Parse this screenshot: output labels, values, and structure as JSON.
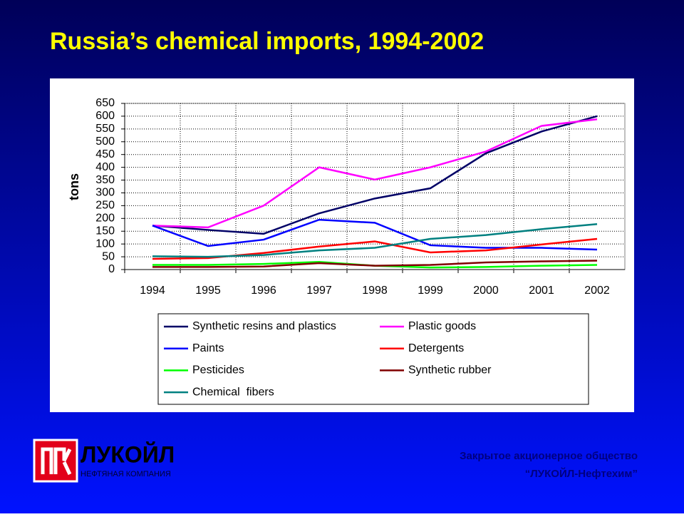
{
  "chart_data": {
    "type": "line",
    "title": "Russia’s chemical imports, 1994-2002",
    "y_label": "tons",
    "categories": [
      "1994",
      "1995",
      "1996",
      "1997",
      "1998",
      "1999",
      "2000",
      "2001",
      "2002"
    ],
    "ylim": [
      0,
      650
    ],
    "yticks": [
      0,
      50,
      100,
      150,
      200,
      250,
      300,
      350,
      400,
      450,
      500,
      550,
      600,
      650
    ],
    "grid": true,
    "legend": "bottom",
    "series": [
      {
        "name": "Synthetic resins and plastics",
        "color": "#000066",
        "values": [
          172,
          155,
          140,
          220,
          278,
          318,
          455,
          540,
          600
        ]
      },
      {
        "name": "Plastic goods",
        "color": "#ff00ff",
        "values": [
          172,
          165,
          250,
          400,
          352,
          400,
          462,
          562,
          588
        ]
      },
      {
        "name": "Paints",
        "color": "#0000ff",
        "values": [
          172,
          92,
          117,
          195,
          183,
          95,
          85,
          85,
          78
        ]
      },
      {
        "name": "Detergents",
        "color": "#ff0000",
        "values": [
          42,
          45,
          65,
          90,
          110,
          67,
          75,
          98,
          120
        ]
      },
      {
        "name": "Pesticides",
        "color": "#00ff00",
        "values": [
          18,
          18,
          22,
          30,
          15,
          8,
          10,
          15,
          18
        ]
      },
      {
        "name": "Synthetic rubber",
        "color": "#800000",
        "values": [
          10,
          10,
          12,
          25,
          15,
          18,
          28,
          32,
          35
        ]
      },
      {
        "name": "Chemical  fibers",
        "color": "#008080",
        "values": [
          52,
          50,
          57,
          75,
          85,
          120,
          135,
          158,
          178
        ]
      }
    ]
  },
  "footer": {
    "logo_name": "ЛУКОЙЛ",
    "logo_subtitle": "НЕФТЯНАЯ КОМПАНИЯ",
    "company_line1": "Закрытое акционерное общество",
    "company_line2": "“ЛУКОЙЛ-Нефтехим”"
  }
}
